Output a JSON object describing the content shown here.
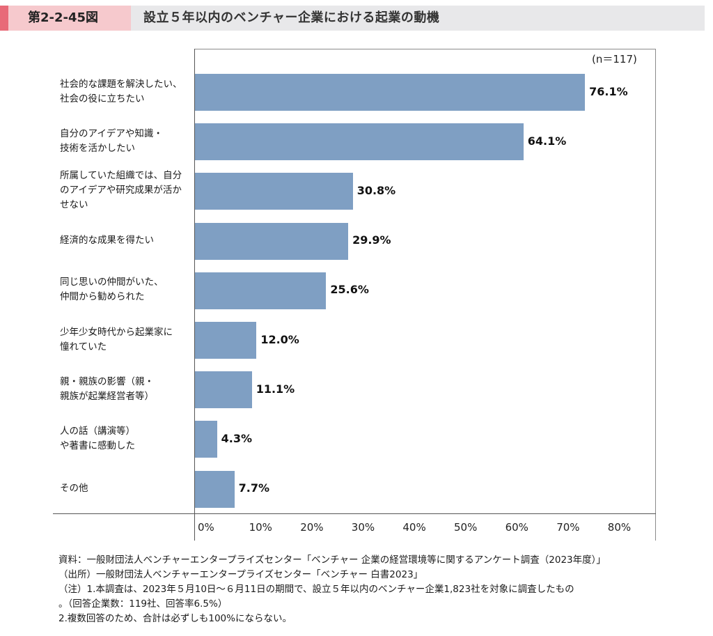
{
  "header": {
    "figure_label": "第2-2-45図",
    "figure_title": "設立５年以内のベンチャー企業における起業の動機"
  },
  "chart_data": {
    "type": "bar",
    "orientation": "horizontal",
    "sample_note": "(n＝117)",
    "categories": [
      [
        "社会的な課題を解決したい、",
        "社会の役に立ちたい"
      ],
      [
        "自分のアイデアや知識・",
        "技術を活かしたい"
      ],
      [
        "所属していた組織では、自分",
        "のアイデアや研究成果が活か",
        "せない"
      ],
      [
        "経済的な成果を得たい"
      ],
      [
        "同じ思いの仲間がいた、",
        "仲間から勧められた"
      ],
      [
        "少年少女時代から起業家に",
        "憧れていた"
      ],
      [
        "親・親族の影響（親・",
        "親族が起業経営者等）"
      ],
      [
        "人の話（講演等）",
        "や著書に感動した"
      ],
      [
        "その他"
      ]
    ],
    "values": [
      76.1,
      64.1,
      30.8,
      29.9,
      25.6,
      12.0,
      11.1,
      4.3,
      7.7
    ],
    "value_labels": [
      "76.1%",
      "64.1%",
      "30.8%",
      "29.9%",
      "25.6%",
      "12.0%",
      "11.1%",
      "4.3%",
      "7.7%"
    ],
    "xlim": [
      0,
      90
    ],
    "xticks": [
      0,
      10,
      20,
      30,
      40,
      50,
      60,
      70,
      80
    ],
    "xtick_labels": [
      "0%",
      "10%",
      "20%",
      "30%",
      "40%",
      "50%",
      "60%",
      "70%",
      "80%"
    ],
    "bar_color": "#7f9fc3"
  },
  "notes": [
    "資料：一般財団法人ベンチャーエンタープライズセンター「ベンチャー 企業の経営環境等に関するアンケート調査（2023年度）」",
    "（出所）一般財団法人ベンチャーエンタープライズセンター「ベンチャー 白書2023」",
    "（注）1.本調査は、2023年５月10日～６月11日の期間で、設立５年以内のベンチャー企業1,823社を対象に調査したもの",
    "。（回答企業数：119社、回答率6.5%）",
    "2.複数回答のため、合計は必ずしも100%にならない。"
  ]
}
